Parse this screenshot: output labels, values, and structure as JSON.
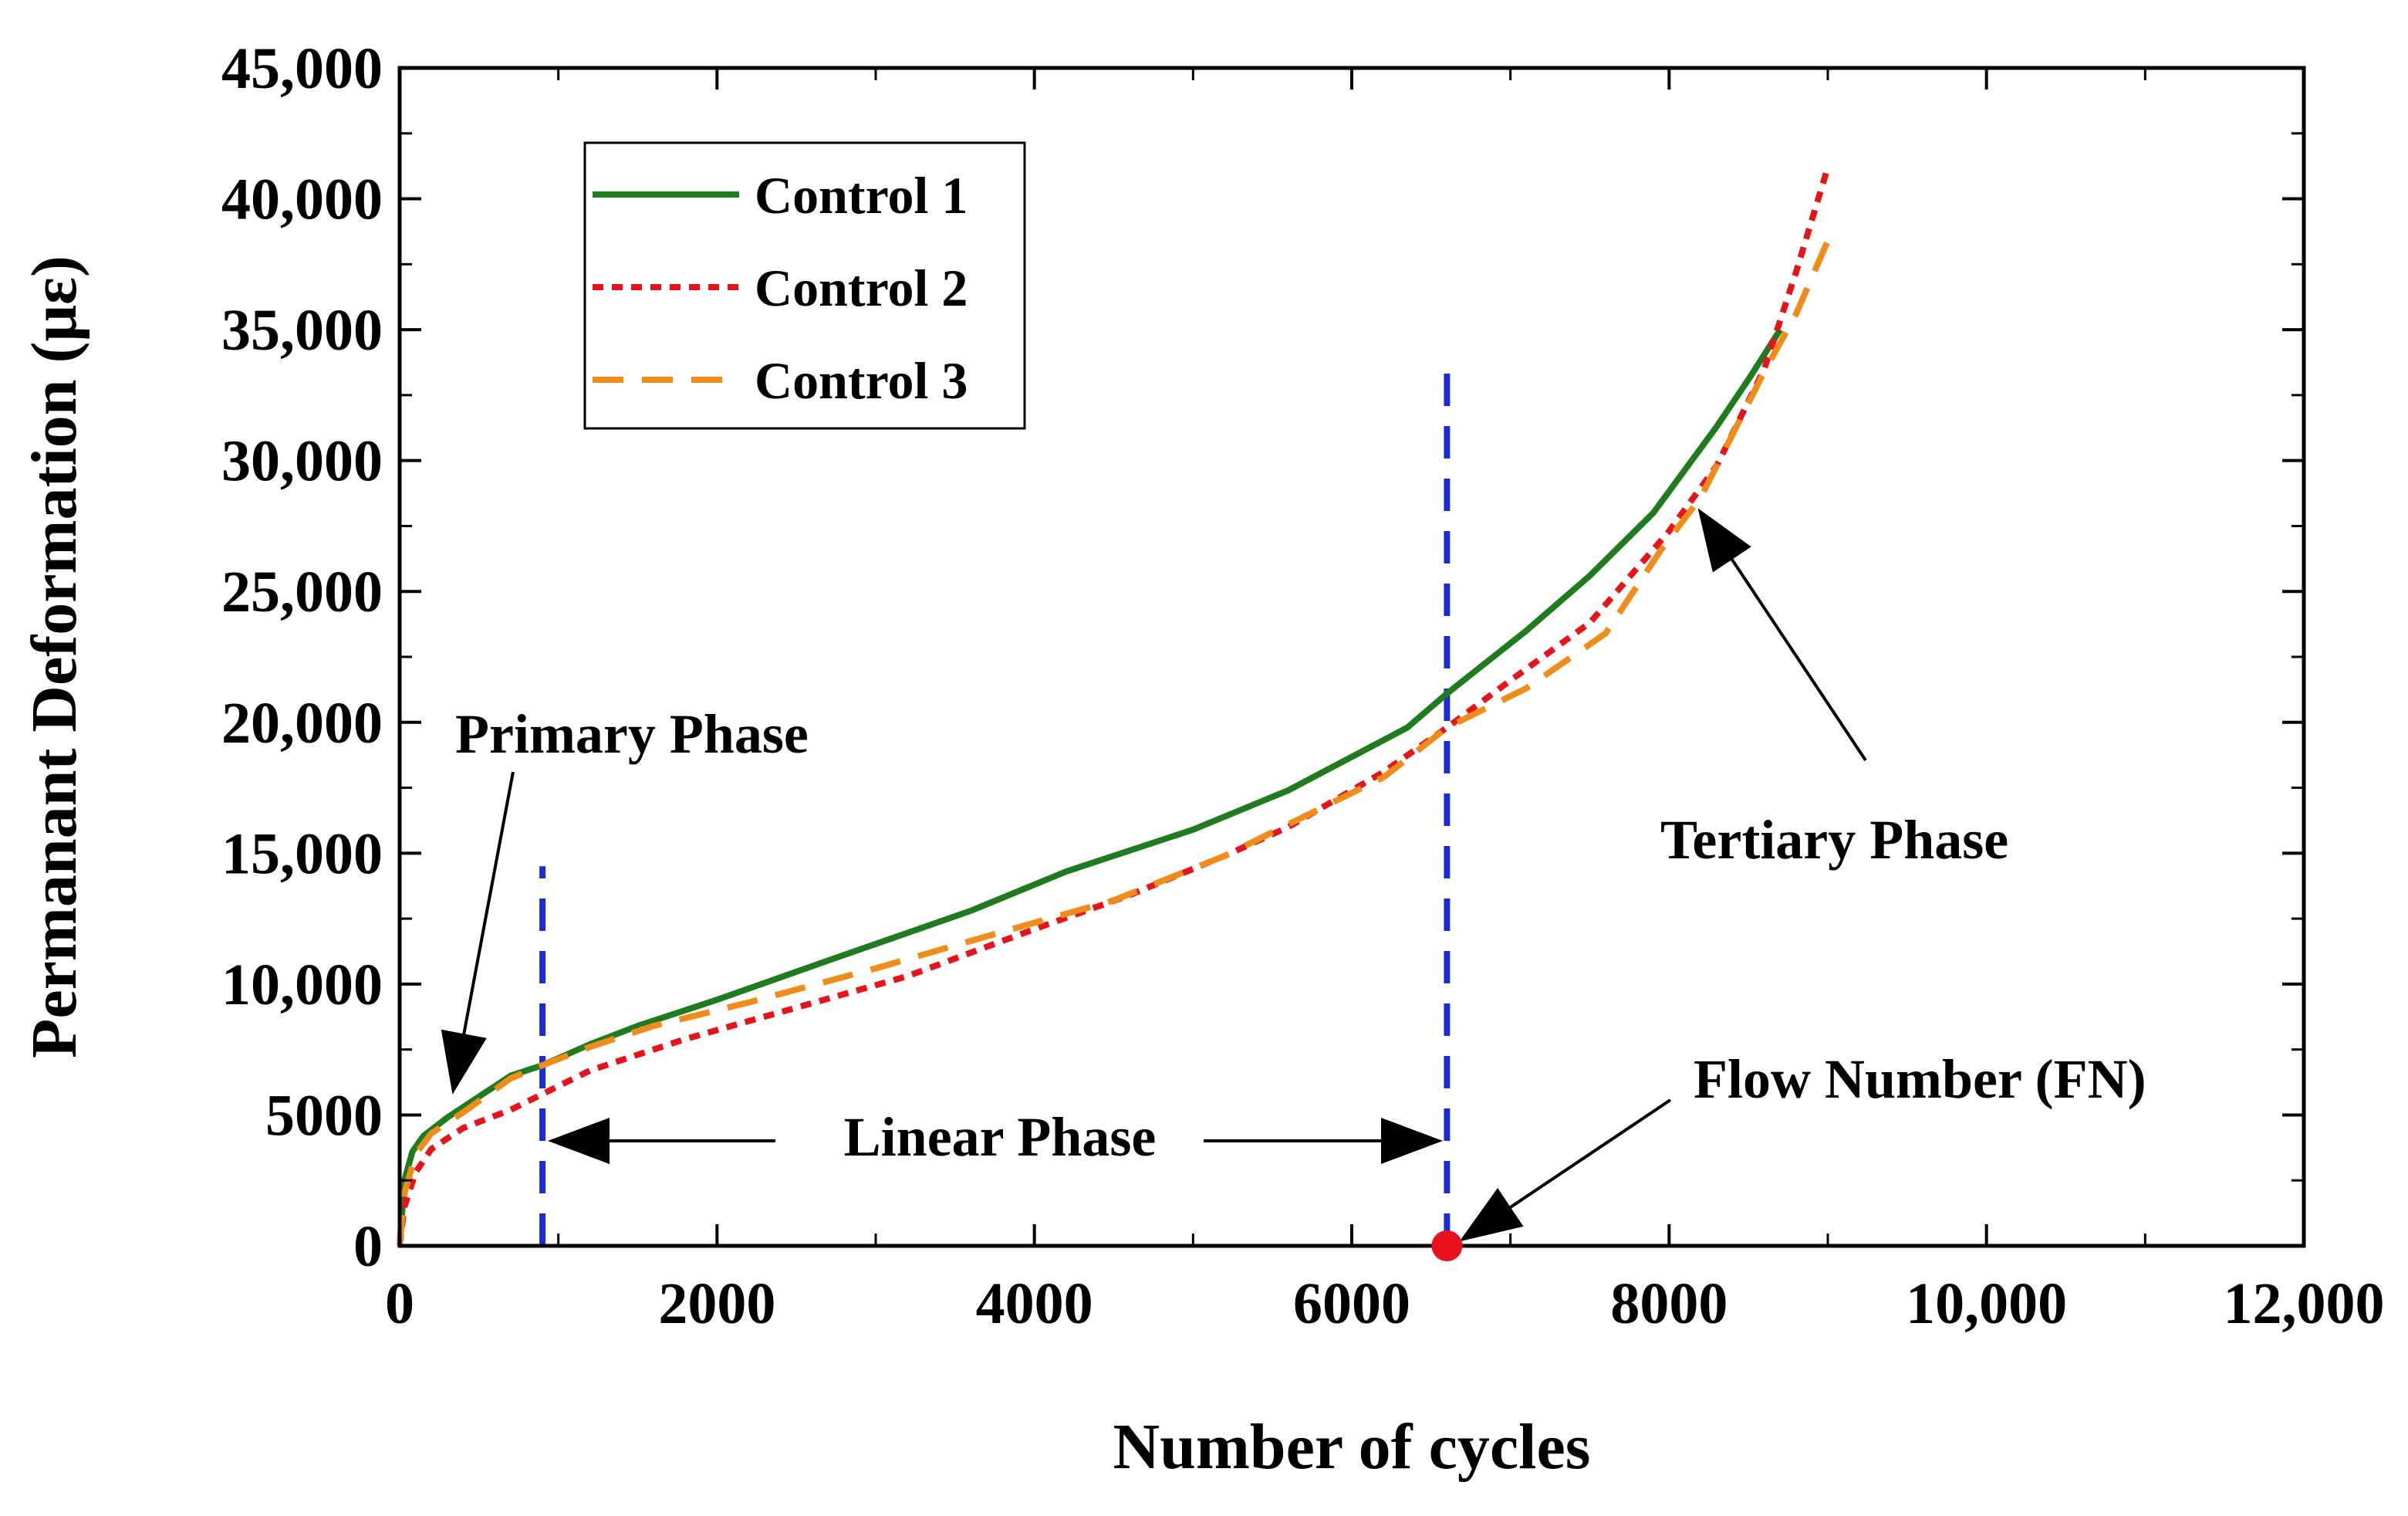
{
  "chart_data": {
    "type": "line",
    "xlabel": "Number of cycles",
    "ylabel": "Permanant Deformation (με)",
    "xlim": [
      0,
      12000
    ],
    "ylim": [
      0,
      45000
    ],
    "x_ticks": [
      {
        "value": 0,
        "label": "0"
      },
      {
        "value": 2000,
        "label": "2000"
      },
      {
        "value": 4000,
        "label": "4000"
      },
      {
        "value": 6000,
        "label": "6000"
      },
      {
        "value": 8000,
        "label": "8000"
      },
      {
        "value": 10000,
        "label": "10,000"
      },
      {
        "value": 12000,
        "label": "12,000"
      }
    ],
    "y_ticks": [
      {
        "value": 0,
        "label": "0"
      },
      {
        "value": 5000,
        "label": "5000"
      },
      {
        "value": 10000,
        "label": "10,000"
      },
      {
        "value": 15000,
        "label": "15,000"
      },
      {
        "value": 20000,
        "label": "20,000"
      },
      {
        "value": 25000,
        "label": "25,000"
      },
      {
        "value": 30000,
        "label": "30,000"
      },
      {
        "value": 35000,
        "label": "35,000"
      },
      {
        "value": 40000,
        "label": "40,000"
      },
      {
        "value": 45000,
        "label": "45,000"
      }
    ],
    "grid": false,
    "legend_position": "top-left",
    "series": [
      {
        "name": "Control 1",
        "color": "#1e7b1e",
        "dash": "solid",
        "points": [
          [
            0,
            0
          ],
          [
            30,
            2500
          ],
          [
            80,
            3600
          ],
          [
            150,
            4200
          ],
          [
            300,
            4900
          ],
          [
            500,
            5700
          ],
          [
            700,
            6500
          ],
          [
            900,
            6900
          ],
          [
            1200,
            7700
          ],
          [
            1500,
            8400
          ],
          [
            2000,
            9400
          ],
          [
            2700,
            10900
          ],
          [
            3600,
            12800
          ],
          [
            4200,
            14300
          ],
          [
            5000,
            15900
          ],
          [
            5600,
            17400
          ],
          [
            6350,
            19800
          ],
          [
            6600,
            21100
          ],
          [
            7100,
            23500
          ],
          [
            7500,
            25600
          ],
          [
            7900,
            28000
          ],
          [
            8300,
            31300
          ],
          [
            8500,
            33100
          ],
          [
            8700,
            35000
          ]
        ]
      },
      {
        "name": "Control 2",
        "color": "#e8121b",
        "dash": "dotted",
        "points": [
          [
            0,
            0
          ],
          [
            30,
            1500
          ],
          [
            100,
            2800
          ],
          [
            200,
            3700
          ],
          [
            400,
            4500
          ],
          [
            700,
            5200
          ],
          [
            900,
            5800
          ],
          [
            1200,
            6700
          ],
          [
            1800,
            7900
          ],
          [
            2500,
            9100
          ],
          [
            3200,
            10300
          ],
          [
            4000,
            12100
          ],
          [
            4600,
            13400
          ],
          [
            5200,
            14900
          ],
          [
            5600,
            16000
          ],
          [
            6200,
            18100
          ],
          [
            6600,
            19800
          ],
          [
            7000,
            21600
          ],
          [
            7500,
            23800
          ],
          [
            8000,
            27300
          ],
          [
            8300,
            29800
          ],
          [
            8600,
            33500
          ],
          [
            8800,
            37200
          ],
          [
            9000,
            41200
          ]
        ]
      },
      {
        "name": "Control 3",
        "color": "#f08c1a",
        "dash": "dashed",
        "points": [
          [
            0,
            0
          ],
          [
            30,
            2000
          ],
          [
            100,
            3500
          ],
          [
            200,
            4300
          ],
          [
            400,
            5100
          ],
          [
            700,
            6400
          ],
          [
            900,
            6900
          ],
          [
            1200,
            7600
          ],
          [
            1600,
            8400
          ],
          [
            2200,
            9300
          ],
          [
            3000,
            10600
          ],
          [
            3800,
            12000
          ],
          [
            4500,
            13200
          ],
          [
            5200,
            14900
          ],
          [
            5700,
            16400
          ],
          [
            6200,
            17900
          ],
          [
            6600,
            19800
          ],
          [
            7100,
            21300
          ],
          [
            7600,
            23400
          ],
          [
            7950,
            26600
          ],
          [
            8200,
            28600
          ],
          [
            8600,
            33400
          ],
          [
            8800,
            35600
          ],
          [
            9000,
            38400
          ]
        ]
      }
    ],
    "reference_lines": [
      {
        "x": 900,
        "y_range": [
          0,
          14500
        ],
        "color": "#1a2bd8"
      },
      {
        "x": 6600,
        "y_range": [
          0,
          34000
        ],
        "color": "#1a2bd8"
      }
    ],
    "flow_number_marker": {
      "x": 6600,
      "y": 0,
      "color": "#e8121b"
    },
    "annotations": [
      {
        "text": "Primary Phase"
      },
      {
        "text": "Linear Phase"
      },
      {
        "text": "Tertiary Phase"
      },
      {
        "text": "Flow Number (FN)"
      }
    ]
  }
}
